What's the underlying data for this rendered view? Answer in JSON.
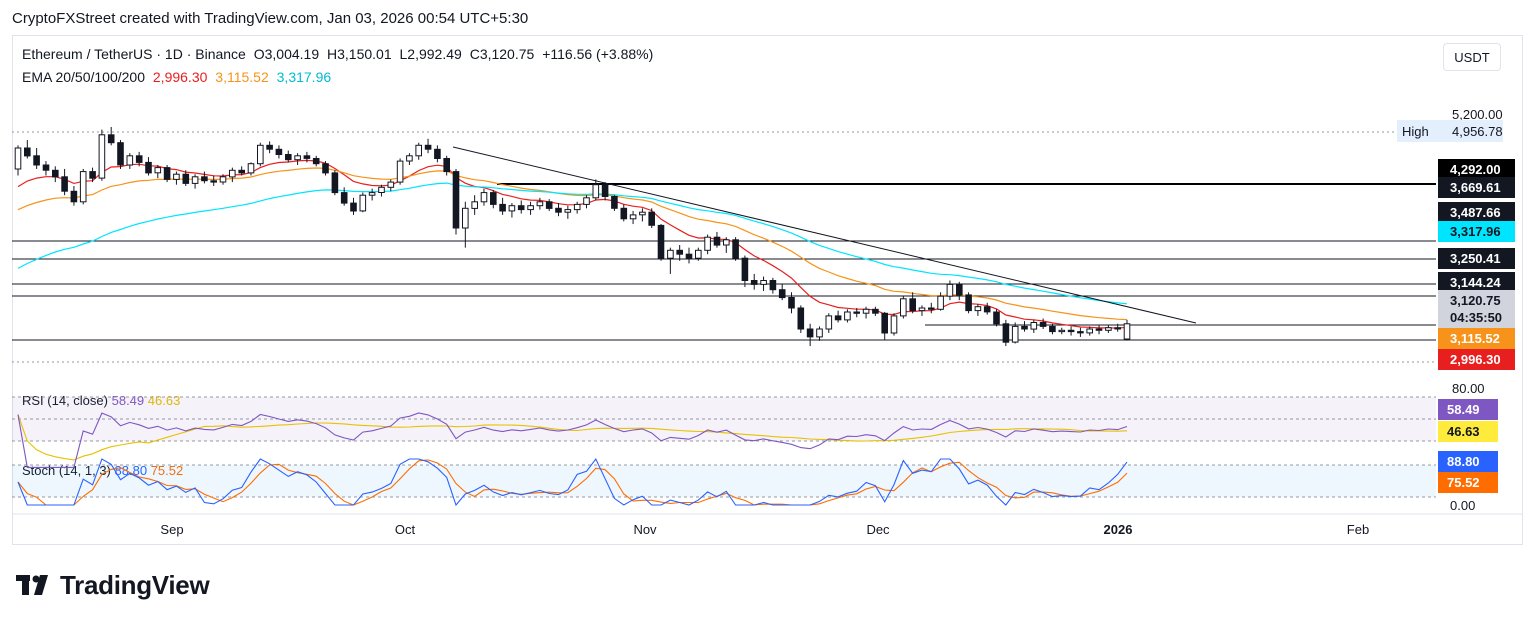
{
  "credit": "CryptoFXStreet created with TradingView.com, Jan 03, 2026 00:54 UTC+5:30",
  "symbol": {
    "name": "Ethereum / TetherUS · 1D · Binance",
    "open": "O3,004.19",
    "high": "H3,150.01",
    "low": "L2,992.49",
    "close": "C3,120.75",
    "change": "+116.56 (+3.88%)"
  },
  "ema_legend": {
    "label": "EMA 20/50/100/200",
    "v20": "2,996.30",
    "v50": "3,115.52",
    "v100": "3,317.96"
  },
  "currency": "USDT",
  "rsi_legend": {
    "label": "RSI (14, close)",
    "rsi": "58.49",
    "ma": "46.63"
  },
  "stoch_legend": {
    "label": "Stoch (14, 1, 3)",
    "k": "88.80",
    "d": "75.52"
  },
  "price_scale": {
    "top_label": "5,200.00",
    "high_tag": "High",
    "high_value": "4,956.78",
    "badges": [
      {
        "text": "4,292.00",
        "bg": "#000000",
        "fg": "#ffffff",
        "price": 4292
      },
      {
        "text": "3,669.61",
        "bg": "#131722",
        "fg": "#ffffff",
        "price": 3669.61
      },
      {
        "text": "3,487.66",
        "bg": "#131722",
        "fg": "#ffffff",
        "price": 3487.66
      },
      {
        "text": "3,317.96",
        "bg": "#00e5ff",
        "fg": "#131722",
        "price": 3317.96
      },
      {
        "text": "3,250.41",
        "bg": "#131722",
        "fg": "#ffffff",
        "price": 3250.41
      },
      {
        "text": "3,144.24",
        "bg": "#131722",
        "fg": "#ffffff",
        "price": 3144.24
      },
      {
        "text": "3,120.75",
        "bg": "#d1d4dc",
        "fg": "#131722",
        "price": 3120.75
      },
      {
        "text": "04:35:50",
        "bg": "#d1d4dc",
        "fg": "#131722",
        "price": 3090
      },
      {
        "text": "3,115.52",
        "bg": "#f7931a",
        "fg": "#ffffff",
        "price": 3050
      },
      {
        "text": "2,996.30",
        "bg": "#e81f1f",
        "fg": "#ffffff",
        "price": 2996.3
      }
    ],
    "rsi_axis": "80.00",
    "rsi_badges": [
      {
        "text": "58.49",
        "bg": "#7e57c2",
        "fg": "#ffffff"
      },
      {
        "text": "46.63",
        "bg": "#ffeb3b",
        "fg": "#131722"
      }
    ],
    "stoch_badges": [
      {
        "text": "88.80",
        "bg": "#2962ff",
        "fg": "#ffffff"
      },
      {
        "text": "75.52",
        "bg": "#ff6d00",
        "fg": "#ffffff"
      }
    ],
    "stoch_axis_zero": "0.00"
  },
  "time_axis": [
    "Sep",
    "Oct",
    "Nov",
    "Dec",
    "2026",
    "Feb"
  ],
  "brand": "TradingView",
  "chart_data": {
    "type": "candlestick",
    "title": "Ethereum / TetherUS · 1D · Binance",
    "ylim": [
      2700,
      5200
    ],
    "horizontal_levels": [
      4292.0,
      3669.61,
      3487.66,
      3250.41,
      3144.24,
      3120.75
    ],
    "candles": [
      [
        4300,
        4480,
        4250,
        4460
      ],
      [
        4460,
        4520,
        4380,
        4400
      ],
      [
        4400,
        4460,
        4300,
        4330
      ],
      [
        4330,
        4360,
        4250,
        4290
      ],
      [
        4290,
        4320,
        4200,
        4240
      ],
      [
        4240,
        4300,
        4100,
        4130
      ],
      [
        4130,
        4170,
        4020,
        4050
      ],
      [
        4050,
        4300,
        4030,
        4280
      ],
      [
        4280,
        4310,
        4200,
        4230
      ],
      [
        4230,
        4600,
        4210,
        4560
      ],
      [
        4560,
        4620,
        4480,
        4500
      ],
      [
        4500,
        4520,
        4300,
        4330
      ],
      [
        4330,
        4420,
        4300,
        4400
      ],
      [
        4400,
        4430,
        4320,
        4350
      ],
      [
        4350,
        4390,
        4250,
        4270
      ],
      [
        4270,
        4330,
        4230,
        4310
      ],
      [
        4310,
        4330,
        4200,
        4220
      ],
      [
        4220,
        4280,
        4180,
        4260
      ],
      [
        4260,
        4290,
        4170,
        4190
      ],
      [
        4190,
        4260,
        4150,
        4240
      ],
      [
        4240,
        4280,
        4190,
        4210
      ],
      [
        4210,
        4250,
        4170,
        4200
      ],
      [
        4200,
        4260,
        4180,
        4240
      ],
      [
        4240,
        4310,
        4200,
        4290
      ],
      [
        4290,
        4320,
        4250,
        4270
      ],
      [
        4270,
        4350,
        4250,
        4340
      ],
      [
        4340,
        4500,
        4320,
        4480
      ],
      [
        4480,
        4510,
        4420,
        4450
      ],
      [
        4450,
        4480,
        4380,
        4410
      ],
      [
        4410,
        4440,
        4350,
        4370
      ],
      [
        4370,
        4420,
        4330,
        4400
      ],
      [
        4400,
        4430,
        4350,
        4380
      ],
      [
        4380,
        4400,
        4320,
        4340
      ],
      [
        4340,
        4360,
        4250,
        4270
      ],
      [
        4270,
        4290,
        4100,
        4120
      ],
      [
        4120,
        4160,
        4020,
        4040
      ],
      [
        4040,
        4080,
        3950,
        3980
      ],
      [
        3980,
        4120,
        3970,
        4100
      ],
      [
        4100,
        4150,
        4060,
        4120
      ],
      [
        4120,
        4180,
        4090,
        4160
      ],
      [
        4160,
        4220,
        4130,
        4200
      ],
      [
        4200,
        4380,
        4180,
        4360
      ],
      [
        4360,
        4420,
        4330,
        4400
      ],
      [
        4400,
        4500,
        4370,
        4480
      ],
      [
        4480,
        4530,
        4420,
        4450
      ],
      [
        4450,
        4480,
        4350,
        4380
      ],
      [
        4380,
        4400,
        4250,
        4280
      ],
      [
        4280,
        4300,
        3800,
        3850
      ],
      [
        3850,
        4050,
        3700,
        4000
      ],
      [
        4000,
        4100,
        3950,
        4050
      ],
      [
        4050,
        4150,
        4020,
        4120
      ],
      [
        4120,
        4140,
        4000,
        4030
      ],
      [
        4030,
        4080,
        3950,
        3980
      ],
      [
        3980,
        4040,
        3930,
        4020
      ],
      [
        4020,
        4060,
        3960,
        3990
      ],
      [
        3990,
        4050,
        3950,
        4020
      ],
      [
        4020,
        4080,
        3990,
        4050
      ],
      [
        4050,
        4070,
        3980,
        4000
      ],
      [
        4000,
        4040,
        3940,
        3970
      ],
      [
        3970,
        4020,
        3920,
        3990
      ],
      [
        3990,
        4050,
        3960,
        4030
      ],
      [
        4030,
        4100,
        4000,
        4080
      ],
      [
        4080,
        4220,
        4060,
        4180
      ],
      [
        4180,
        4200,
        4060,
        4090
      ],
      [
        4090,
        4100,
        3980,
        4000
      ],
      [
        4000,
        4030,
        3900,
        3920
      ],
      [
        3920,
        3980,
        3880,
        3950
      ],
      [
        3950,
        4000,
        3900,
        3970
      ],
      [
        3970,
        4000,
        3850,
        3870
      ],
      [
        3870,
        3880,
        3600,
        3620
      ],
      [
        3620,
        3700,
        3500,
        3680
      ],
      [
        3680,
        3720,
        3600,
        3650
      ],
      [
        3650,
        3700,
        3580,
        3620
      ],
      [
        3620,
        3700,
        3600,
        3680
      ],
      [
        3680,
        3800,
        3650,
        3780
      ],
      [
        3780,
        3820,
        3700,
        3720
      ],
      [
        3720,
        3780,
        3660,
        3760
      ],
      [
        3760,
        3780,
        3600,
        3620
      ],
      [
        3620,
        3640,
        3400,
        3450
      ],
      [
        3450,
        3500,
        3380,
        3420
      ],
      [
        3420,
        3480,
        3370,
        3450
      ],
      [
        3450,
        3470,
        3350,
        3380
      ],
      [
        3380,
        3420,
        3300,
        3320
      ],
      [
        3320,
        3360,
        3200,
        3240
      ],
      [
        3240,
        3260,
        3050,
        3080
      ],
      [
        3080,
        3120,
        2950,
        3020
      ],
      [
        3020,
        3100,
        2990,
        3080
      ],
      [
        3080,
        3200,
        3050,
        3180
      ],
      [
        3180,
        3220,
        3130,
        3150
      ],
      [
        3150,
        3230,
        3130,
        3210
      ],
      [
        3210,
        3240,
        3170,
        3200
      ],
      [
        3200,
        3250,
        3160,
        3230
      ],
      [
        3230,
        3250,
        3180,
        3200
      ],
      [
        3200,
        3210,
        3000,
        3050
      ],
      [
        3050,
        3200,
        3030,
        3180
      ],
      [
        3180,
        3330,
        3160,
        3310
      ],
      [
        3310,
        3360,
        3200,
        3220
      ],
      [
        3220,
        3260,
        3180,
        3240
      ],
      [
        3240,
        3280,
        3200,
        3230
      ],
      [
        3230,
        3360,
        3220,
        3330
      ],
      [
        3330,
        3450,
        3300,
        3420
      ],
      [
        3420,
        3440,
        3300,
        3340
      ],
      [
        3340,
        3360,
        3200,
        3220
      ],
      [
        3220,
        3270,
        3180,
        3250
      ],
      [
        3250,
        3280,
        3190,
        3210
      ],
      [
        3210,
        3230,
        3100,
        3120
      ],
      [
        3120,
        3150,
        2950,
        2980
      ],
      [
        2980,
        3130,
        2970,
        3100
      ],
      [
        3100,
        3140,
        3060,
        3080
      ],
      [
        3080,
        3150,
        3050,
        3130
      ],
      [
        3130,
        3160,
        3080,
        3100
      ],
      [
        3100,
        3120,
        3040,
        3060
      ],
      [
        3060,
        3090,
        3040,
        3070
      ],
      [
        3070,
        3100,
        3030,
        3060
      ],
      [
        3060,
        3090,
        3020,
        3050
      ],
      [
        3050,
        3100,
        3030,
        3080
      ],
      [
        3080,
        3110,
        3040,
        3070
      ],
      [
        3070,
        3110,
        3050,
        3090
      ],
      [
        3090,
        3120,
        3060,
        3080
      ],
      [
        3004,
        3150,
        2992,
        3120
      ]
    ],
    "series": [
      {
        "name": "EMA 20",
        "color": "#e81f1f"
      },
      {
        "name": "EMA 50",
        "color": "#f7931a"
      },
      {
        "name": "EMA 100",
        "color": "#00bcd4"
      }
    ]
  }
}
